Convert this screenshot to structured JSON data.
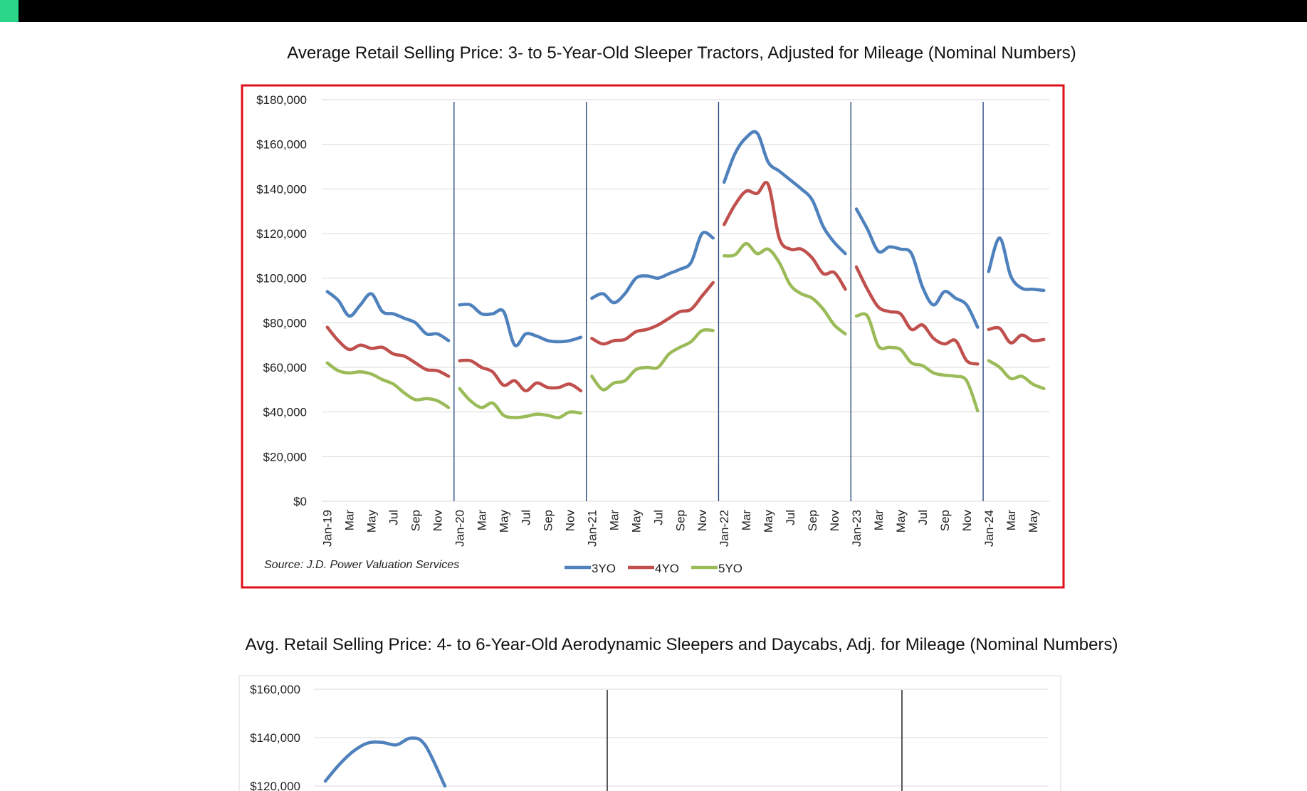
{
  "colors": {
    "topbar": "#000000",
    "accent": "#2bd68a",
    "frame": "#e0101a",
    "3YO": "#4f81bd",
    "4YO": "#c0504d",
    "5YO": "#9bbb59"
  },
  "chart1": {
    "title": "Average Retail Selling Price: 3- to 5-Year-Old Sleeper Tractors, Adjusted for Mileage (Nominal Numbers)",
    "source": "Source: J.D. Power Valuation Services"
  },
  "chart2": {
    "title": "Avg. Retail Selling Price: 4- to 6-Year-Old Aerodynamic Sleepers and Daycabs, Adj. for Mileage (Nominal Numbers)"
  },
  "chart_data": [
    {
      "type": "line",
      "title": "Average Retail Selling Price: 3- to 5-Year-Old Sleeper Tractors, Adjusted for Mileage (Nominal Numbers)",
      "ylim": [
        0,
        180000
      ],
      "yticks": [
        "$0",
        "$20,000",
        "$40,000",
        "$60,000",
        "$80,000",
        "$100,000",
        "$120,000",
        "$140,000",
        "$160,000",
        "$180,000"
      ],
      "ytick_values": [
        0,
        20000,
        40000,
        60000,
        80000,
        100000,
        120000,
        140000,
        160000,
        180000
      ],
      "x_count": 66,
      "xtick_labels": [
        {
          "i": 0,
          "label": "Jan-19"
        },
        {
          "i": 2,
          "label": "Mar"
        },
        {
          "i": 4,
          "label": "May"
        },
        {
          "i": 6,
          "label": "Jul"
        },
        {
          "i": 8,
          "label": "Sep"
        },
        {
          "i": 10,
          "label": "Nov"
        },
        {
          "i": 12,
          "label": "Jan-20"
        },
        {
          "i": 14,
          "label": "Mar"
        },
        {
          "i": 16,
          "label": "May"
        },
        {
          "i": 18,
          "label": "Jul"
        },
        {
          "i": 20,
          "label": "Sep"
        },
        {
          "i": 22,
          "label": "Nov"
        },
        {
          "i": 24,
          "label": "Jan-21"
        },
        {
          "i": 26,
          "label": "Mar"
        },
        {
          "i": 28,
          "label": "May"
        },
        {
          "i": 30,
          "label": "Jul"
        },
        {
          "i": 32,
          "label": "Sep"
        },
        {
          "i": 34,
          "label": "Nov"
        },
        {
          "i": 36,
          "label": "Jan-22"
        },
        {
          "i": 38,
          "label": "Mar"
        },
        {
          "i": 40,
          "label": "May"
        },
        {
          "i": 42,
          "label": "Jul"
        },
        {
          "i": 44,
          "label": "Sep"
        },
        {
          "i": 46,
          "label": "Nov"
        },
        {
          "i": 48,
          "label": "Jan-23"
        },
        {
          "i": 50,
          "label": "Mar"
        },
        {
          "i": 52,
          "label": "May"
        },
        {
          "i": 54,
          "label": "Jul"
        },
        {
          "i": 56,
          "label": "Sep"
        },
        {
          "i": 58,
          "label": "Nov"
        },
        {
          "i": 60,
          "label": "Jan-24"
        },
        {
          "i": 62,
          "label": "Mar"
        },
        {
          "i": 64,
          "label": "May"
        }
      ],
      "year_starts": [
        0,
        12,
        24,
        36,
        48,
        60
      ],
      "series": [
        {
          "name": "3YO",
          "color": "#4f81bd",
          "values": [
            94000,
            90000,
            83000,
            88000,
            93000,
            85000,
            84000,
            82000,
            80000,
            75000,
            75000,
            72000,
            88000,
            88000,
            84000,
            84000,
            85000,
            70000,
            75000,
            74000,
            72000,
            71500,
            72000,
            73500,
            91000,
            93000,
            89000,
            93000,
            100000,
            101000,
            100000,
            102000,
            104000,
            107000,
            120000,
            118000,
            143000,
            156000,
            163000,
            165000,
            152000,
            148000,
            144000,
            140000,
            135000,
            123000,
            116000,
            111000,
            131000,
            122000,
            112000,
            114000,
            113000,
            111000,
            96000,
            88000,
            94000,
            91000,
            88000,
            78000,
            103000,
            118000,
            101000,
            95500,
            95000,
            94500
          ]
        },
        {
          "name": "4YO",
          "color": "#c0504d",
          "values": [
            78000,
            72000,
            68000,
            70000,
            68500,
            69000,
            66000,
            65000,
            62000,
            59000,
            58500,
            56000,
            63000,
            63000,
            60000,
            58000,
            52000,
            54000,
            49500,
            53000,
            51000,
            51000,
            52500,
            49500,
            73000,
            70500,
            72000,
            72500,
            76000,
            77000,
            79000,
            82000,
            85000,
            86000,
            92000,
            98000,
            124000,
            133000,
            139000,
            138000,
            142000,
            118000,
            113000,
            113000,
            109000,
            102000,
            102500,
            95000,
            105000,
            95000,
            87000,
            85000,
            84000,
            77000,
            79000,
            73000,
            70500,
            72000,
            63000,
            61500,
            77000,
            77500,
            71000,
            74500,
            72000,
            72500
          ]
        },
        {
          "name": "5YO",
          "color": "#9bbb59",
          "values": [
            62000,
            58500,
            57500,
            58000,
            57000,
            54500,
            52500,
            48500,
            45500,
            46000,
            45000,
            42000,
            50500,
            45000,
            42000,
            44000,
            38500,
            37500,
            38000,
            39000,
            38500,
            37500,
            40000,
            39500,
            56000,
            50000,
            53000,
            54000,
            59000,
            60000,
            60000,
            66000,
            69000,
            71500,
            76500,
            76500,
            110000,
            110500,
            115500,
            111000,
            113000,
            107000,
            97000,
            93000,
            91000,
            86000,
            79000,
            75000,
            83000,
            83000,
            69500,
            69000,
            68000,
            62000,
            60800,
            57500,
            56500,
            56000,
            54000,
            40500,
            63000,
            60000,
            55000,
            56000,
            52500,
            50500
          ]
        }
      ],
      "legend_position": "bottom-center"
    },
    {
      "type": "line",
      "title": "Avg. Retail Selling Price: 4- to 6-Year-Old Aerodynamic Sleepers and Daycabs, Adj. for Mileage (Nominal Numbers)",
      "ylim_visible": [
        120000,
        160000
      ],
      "yticks": [
        "$120,000",
        "$140,000",
        "$160,000"
      ],
      "ytick_values": [
        120000,
        140000,
        160000
      ],
      "series": [
        {
          "name": "",
          "color": "#4f81bd",
          "values": [
            122000,
            129000,
            134500,
            137800,
            138000,
            137000,
            139800,
            137000,
            120000
          ]
        }
      ]
    }
  ]
}
